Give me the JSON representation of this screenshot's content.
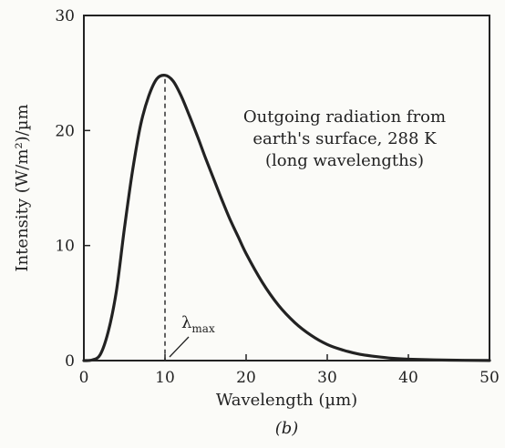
{
  "chart_data": {
    "type": "line",
    "xlabel": "Wavelength (µm)",
    "ylabel": "Intensity (W/m²)/µm",
    "xlim": [
      0,
      50
    ],
    "ylim": [
      0,
      30
    ],
    "x_ticks": [
      0,
      10,
      20,
      30,
      40,
      50
    ],
    "y_ticks": [
      0,
      10,
      20,
      30
    ],
    "grid": false,
    "panel_label": "(b)",
    "annotation": {
      "lines": [
        "Outgoing radiation from",
        "earth's surface, 288 K",
        "(long wavelengths)"
      ]
    },
    "marker": {
      "label": "λmax",
      "x": 10
    },
    "series": [
      {
        "x": [
          0,
          1,
          2,
          3,
          4,
          5,
          6,
          7,
          8,
          9,
          10,
          11,
          12,
          13,
          14,
          15,
          16,
          17,
          18,
          19,
          20,
          22,
          24,
          26,
          28,
          30,
          32,
          34,
          36,
          38,
          40,
          45,
          50
        ],
        "values": [
          0,
          0.05,
          0.5,
          2.5,
          6,
          11.5,
          16.5,
          20.5,
          23,
          24.5,
          24.8,
          24.3,
          23,
          21.3,
          19.5,
          17.6,
          15.8,
          14,
          12.3,
          10.8,
          9.3,
          6.8,
          4.8,
          3.3,
          2.2,
          1.4,
          0.9,
          0.55,
          0.35,
          0.2,
          0.12,
          0.04,
          0.01
        ]
      }
    ]
  }
}
